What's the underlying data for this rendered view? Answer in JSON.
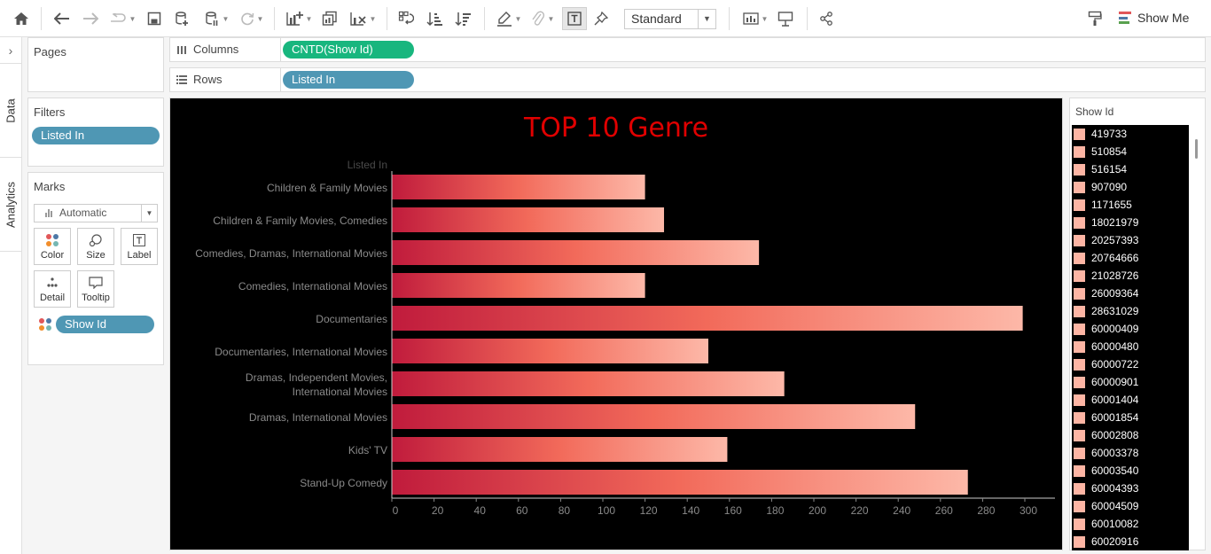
{
  "toolbar": {
    "view_mode": "Standard",
    "show_me_label": "Show Me",
    "icons": [
      "home-icon",
      "undo-icon",
      "redo-icon",
      "replay-icon",
      "save-icon",
      "new-datasource-icon",
      "pause-autoupdate-icon",
      "refresh-icon",
      "new-worksheet-icon",
      "duplicate-icon",
      "clear-icon",
      "swap-icon",
      "sort-asc-icon",
      "sort-desc-icon",
      "highlight-icon",
      "group-icon",
      "label-icon",
      "pin-icon",
      "chart-icon",
      "presentation-icon",
      "share-icon",
      "format-painter-icon"
    ]
  },
  "side_tabs": {
    "data": "Data",
    "analytics": "Analytics"
  },
  "pages": {
    "title": "Pages"
  },
  "filters": {
    "title": "Filters",
    "pills": [
      "Listed In"
    ]
  },
  "marks": {
    "title": "Marks",
    "type": "Automatic",
    "buttons": {
      "color": "Color",
      "size": "Size",
      "label": "Label",
      "detail": "Detail",
      "tooltip": "Tooltip"
    },
    "color_pill": "Show Id"
  },
  "shelves": {
    "columns_label": "Columns",
    "columns_pill": "CNTD(Show Id)",
    "rows_label": "Rows",
    "rows_pill": "Listed In"
  },
  "viz": {
    "title": "TOP 10 Genre",
    "axis_title": "Listed In"
  },
  "chart_data": {
    "type": "bar",
    "orientation": "horizontal",
    "title": "TOP 10 Genre",
    "ylabel": "Listed In",
    "xlabel": "",
    "categories": [
      "Children & Family Movies",
      "Children & Family Movies, Comedies",
      "Comedies, Dramas, International Movies",
      "Comedies, International Movies",
      "Documentaries",
      "Documentaries, International Movies",
      "Dramas, Independent Movies, International Movies",
      "Dramas, International Movies",
      "Kids' TV",
      "Stand-Up Comedy"
    ],
    "values": [
      120,
      129,
      174,
      120,
      299,
      150,
      186,
      248,
      159,
      273
    ],
    "xlim": [
      0,
      315
    ],
    "xticks": [
      0,
      20,
      40,
      60,
      80,
      100,
      120,
      140,
      160,
      180,
      200,
      220,
      240,
      260,
      280,
      300
    ],
    "grid": false,
    "colors": {
      "dark": "#c01b3c",
      "mid": "#f26a5a",
      "light": "#fdb8a8",
      "background": "#000000"
    }
  },
  "legend": {
    "title": "Show Id",
    "swatch_color": "#fdb5a4",
    "items": [
      "419733",
      "510854",
      "516154",
      "907090",
      "1171655",
      "18021979",
      "20257393",
      "20764666",
      "21028726",
      "26009364",
      "28631029",
      "60000409",
      "60000480",
      "60000722",
      "60000901",
      "60001404",
      "60001854",
      "60002808",
      "60003378",
      "60003540",
      "60004393",
      "60004509",
      "60010082",
      "60020916"
    ]
  }
}
